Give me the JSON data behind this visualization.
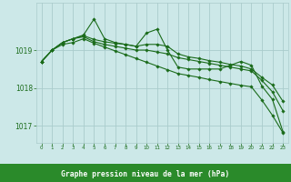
{
  "bg_color": "#cce8e8",
  "grid_color": "#aacccc",
  "line_color": "#1a6b1a",
  "xlabel": "Graphe pression niveau de la mer (hPa)",
  "xlabel_bg": "#2a8a2a",
  "ytick_vals": [
    1017,
    1018,
    1019
  ],
  "ylim": [
    1016.55,
    1020.25
  ],
  "xlim": [
    -0.5,
    23.5
  ],
  "series": [
    [
      1018.7,
      1019.0,
      1019.2,
      1019.3,
      1019.4,
      1019.82,
      1019.3,
      1019.2,
      1019.15,
      1019.1,
      1019.45,
      1019.55,
      1019.0,
      1018.55,
      1018.5,
      1018.5,
      1018.5,
      1018.5,
      1018.6,
      1018.7,
      1018.6,
      1018.05,
      1017.7,
      1016.85
    ],
    [
      1018.7,
      1019.0,
      1019.2,
      1019.3,
      1019.38,
      1019.28,
      1019.22,
      1019.18,
      1019.15,
      1019.1,
      1019.15,
      1019.15,
      1019.1,
      1018.9,
      1018.82,
      1018.78,
      1018.72,
      1018.68,
      1018.62,
      1018.58,
      1018.5,
      1018.28,
      1018.08,
      1017.65
    ],
    [
      1018.7,
      1019.0,
      1019.2,
      1019.3,
      1019.35,
      1019.22,
      1019.15,
      1019.1,
      1019.05,
      1019.0,
      1019.0,
      1018.95,
      1018.9,
      1018.8,
      1018.75,
      1018.7,
      1018.65,
      1018.6,
      1018.55,
      1018.5,
      1018.45,
      1018.2,
      1017.9,
      1017.4
    ],
    [
      1018.7,
      1019.0,
      1019.15,
      1019.2,
      1019.3,
      1019.18,
      1019.08,
      1018.98,
      1018.88,
      1018.78,
      1018.68,
      1018.58,
      1018.48,
      1018.38,
      1018.33,
      1018.28,
      1018.22,
      1018.17,
      1018.12,
      1018.07,
      1018.03,
      1017.68,
      1017.28,
      1016.82
    ]
  ]
}
